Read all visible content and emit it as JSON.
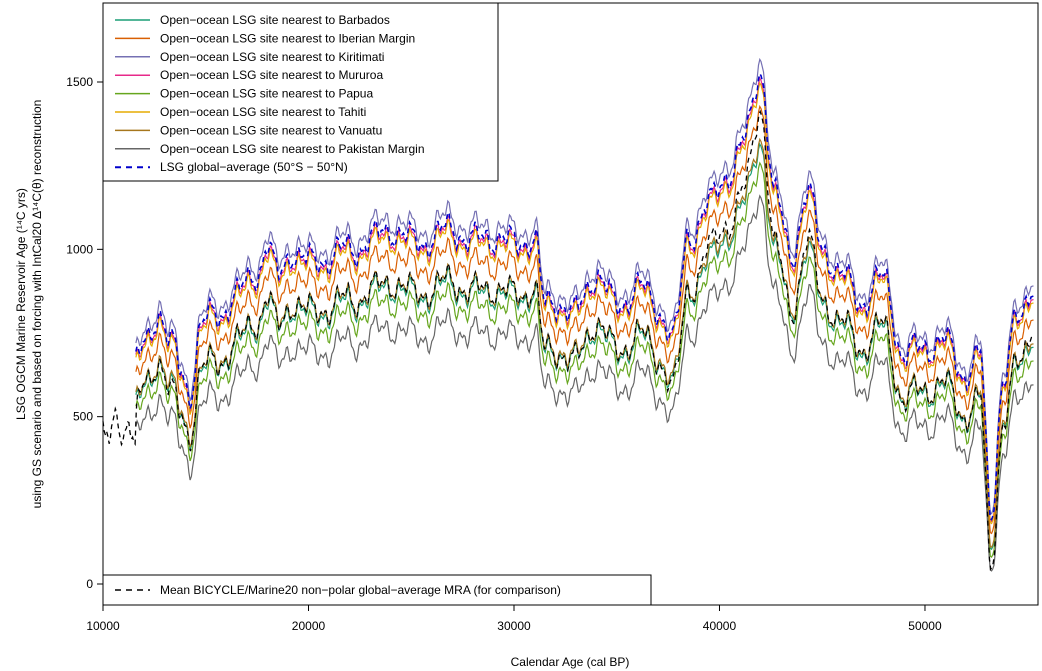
{
  "chart_data": {
    "type": "line",
    "xlabel": "Calendar Age (cal BP)",
    "ylabel_line1": "LSG OGCM Marine Reservoir Age (¹⁴C yrs)",
    "ylabel_line2": "using GS scenario and based on forcing with IntCal20 Δ¹⁴C(θ) reconstruction",
    "xlim": [
      10000,
      55500
    ],
    "ylim": [
      0,
      1650
    ],
    "x_ticks": [
      10000,
      20000,
      30000,
      40000,
      50000
    ],
    "y_ticks": [
      0,
      500,
      1000,
      1500
    ],
    "legend_position": "top-left",
    "x_range": [
      11600,
      55300
    ],
    "base_curve": {
      "x": [
        11600,
        12200,
        12700,
        13300,
        13800,
        14200,
        14800,
        15500,
        16500,
        17500,
        18000,
        18500,
        19200,
        20000,
        21000,
        22000,
        23000,
        24000,
        25000,
        26000,
        27000,
        28000,
        29000,
        30000,
        31000,
        31500,
        32200,
        33000,
        34000,
        35000,
        36000,
        37000,
        37800,
        38500,
        39500,
        40500,
        41200,
        42000,
        42700,
        43500,
        44300,
        45000,
        46000,
        47000,
        48000,
        49000,
        50000,
        51000,
        52000,
        52700,
        53200,
        53800,
        54500,
        55300
      ],
      "y": [
        540,
        610,
        700,
        600,
        520,
        470,
        650,
        680,
        730,
        800,
        870,
        780,
        860,
        820,
        840,
        860,
        880,
        920,
        880,
        890,
        920,
        880,
        900,
        870,
        900,
        700,
        720,
        680,
        800,
        700,
        760,
        700,
        620,
        900,
        980,
        1080,
        1150,
        1360,
        1000,
        850,
        1010,
        870,
        780,
        720,
        780,
        560,
        600,
        600,
        520,
        560,
        130,
        500,
        660,
        780
      ]
    },
    "series": [
      {
        "name": "Open−ocean LSG site nearest to Barbados",
        "color": "#1b9e77",
        "offset": -20
      },
      {
        "name": "Open−ocean LSG site nearest to Iberian Margin",
        "color": "#d95f02",
        "offset": 60
      },
      {
        "name": "Open−ocean LSG site nearest to Kiritimati",
        "color": "#7570b3",
        "offset": 160
      },
      {
        "name": "Open−ocean LSG site nearest to Mururoa",
        "color": "#e7298a",
        "offset": 120
      },
      {
        "name": "Open−ocean LSG site nearest to Papua",
        "color": "#66a61e",
        "offset": -60
      },
      {
        "name": "Open−ocean LSG site nearest to Tahiti",
        "color": "#e6ab02",
        "offset": 110
      },
      {
        "name": "Open−ocean LSG site nearest to Vanuatu",
        "color": "#a6761d",
        "offset": -10
      },
      {
        "name": "Open−ocean LSG site nearest to Pakistan Margin",
        "color": "#666666",
        "offset": -130
      },
      {
        "name": "LSG global−average (50°S − 50°N)",
        "color": "#0000cc",
        "offset": 130,
        "dashed": true
      }
    ],
    "comparison_series": {
      "name": "Mean BICYCLE/Marine20 non−polar global−average MRA (for comparison)",
      "color": "#000000",
      "dashed": true,
      "x": [
        10000,
        10300,
        10600,
        10900,
        11200,
        11500,
        11800,
        12200,
        12700,
        13300,
        13800,
        14200,
        14800,
        15500,
        16500,
        17500,
        18000,
        18500,
        19200,
        20000,
        21000,
        22000,
        23000,
        24000,
        25000,
        26000,
        27000,
        28000,
        29000,
        30000,
        31000,
        31500,
        32200,
        33000,
        34000,
        35000,
        36000,
        37000,
        37800,
        38500,
        39500,
        40500,
        41200,
        42000,
        42700,
        43500,
        44300,
        45000,
        46000,
        47000,
        48000,
        49000,
        50000,
        51000,
        52000,
        52700,
        53200,
        53800,
        54500,
        55300
      ],
      "y": [
        470,
        430,
        520,
        420,
        480,
        420,
        560,
        600,
        680,
        570,
        500,
        450,
        640,
        660,
        720,
        790,
        860,
        760,
        850,
        810,
        830,
        850,
        870,
        910,
        870,
        880,
        910,
        870,
        890,
        860,
        890,
        690,
        700,
        660,
        790,
        690,
        750,
        680,
        590,
        880,
        1000,
        1090,
        1170,
        1430,
        1000,
        820,
        1020,
        860,
        770,
        710,
        770,
        540,
        590,
        590,
        510,
        540,
        60,
        480,
        650,
        790
      ]
    }
  }
}
